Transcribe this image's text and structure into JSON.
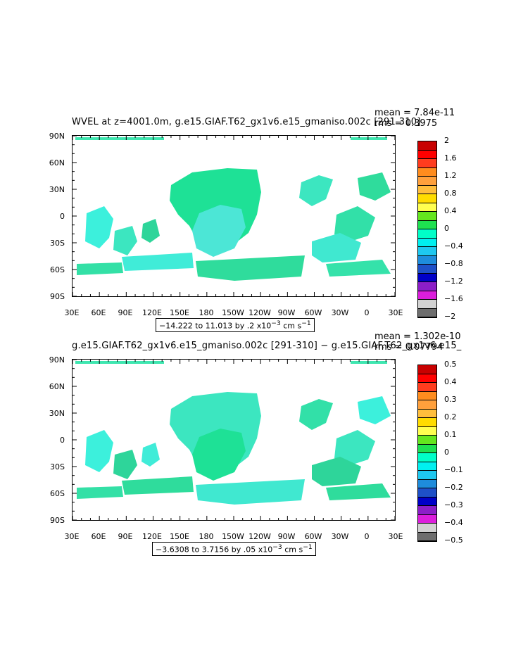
{
  "maps": [
    {
      "title": "WVEL at z=4001.0m, g.e15.GIAF.T62_gx1v6.e15_gmaniso.002c [291-310]",
      "mean": "mean = 7.84e-11",
      "rms": "rms = 0.3975",
      "range_text": "−14.222 to 11.013 by .2 x10",
      "range_exp": "−3",
      "range_units": " cm s",
      "range_unit_exp": "−1",
      "lat_labels": [
        "90N",
        "60N",
        "30N",
        "0",
        "30S",
        "60S",
        "90S"
      ],
      "lon_labels": [
        "30E",
        "60E",
        "90E",
        "120E",
        "150E",
        "180",
        "150W",
        "120W",
        "90W",
        "60W",
        "30W",
        "0",
        "30E"
      ],
      "colorbar": {
        "levels": [
          "2",
          "1.6",
          "1.2",
          "0.8",
          "0.4",
          "0",
          "−0.4",
          "−0.8",
          "−1.2",
          "−1.6",
          "−2"
        ],
        "colors": [
          "#c80000",
          "#ff0000",
          "#ff3c1e",
          "#ff8c1e",
          "#ffa03c",
          "#ffbe3c",
          "#ffdc00",
          "#ffff50",
          "#64e61e",
          "#1ee150",
          "#00ffc8",
          "#00f0f0",
          "#1ec8f0",
          "#1e8cdc",
          "#1e50c8",
          "#0000c8",
          "#8c1ec8",
          "#dc1edc",
          "#d2d2d2",
          "#6e6e6e"
        ]
      }
    },
    {
      "title": "g.e15.GIAF.T62_gx1v6.e15_gmaniso.002c [291-310] − g.e15.GIAF.T62_gx1v6.e15_",
      "mean": "mean = 1.302e-10",
      "rms": "rms = 0.07794",
      "range_text": "−3.6308 to 3.7156 by .05 x10",
      "range_exp": "−3",
      "range_units": " cm s",
      "range_unit_exp": "−1",
      "lat_labels": [
        "90N",
        "60N",
        "30N",
        "0",
        "30S",
        "60S",
        "90S"
      ],
      "lon_labels": [
        "30E",
        "60E",
        "90E",
        "120E",
        "150E",
        "180",
        "150W",
        "120W",
        "90W",
        "60W",
        "30W",
        "0",
        "30E"
      ],
      "colorbar": {
        "levels": [
          "0.5",
          "0.4",
          "0.3",
          "0.2",
          "0.1",
          "0",
          "−0.1",
          "−0.2",
          "−0.3",
          "−0.4",
          "−0.5"
        ],
        "colors": [
          "#c80000",
          "#ff0000",
          "#ff3c1e",
          "#ff8c1e",
          "#ffa03c",
          "#ffbe3c",
          "#ffdc00",
          "#ffff50",
          "#64e61e",
          "#1ee150",
          "#00ffc8",
          "#00f0f0",
          "#1ec8f0",
          "#1e8cdc",
          "#1e50c8",
          "#0000c8",
          "#8c1ec8",
          "#dc1edc",
          "#d2d2d2",
          "#6e6e6e"
        ]
      }
    }
  ]
}
